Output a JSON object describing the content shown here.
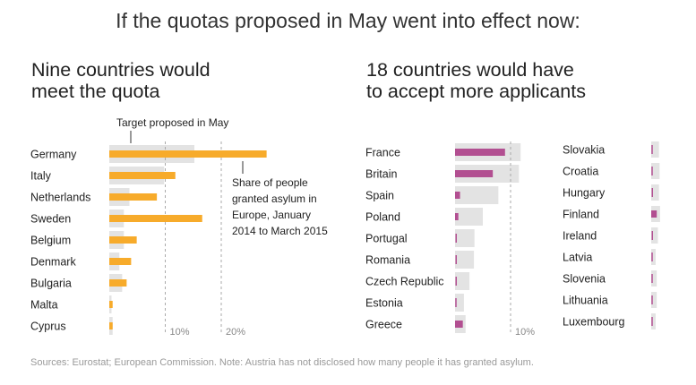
{
  "title": "If the quotas proposed in May went into effect now:",
  "panels": {
    "left": {
      "title_line1": "Nine countries would",
      "title_line2": "meet the quota"
    },
    "right": {
      "title_line1": "18 countries would have",
      "title_line2": "to accept more applicants"
    }
  },
  "annotations": {
    "target": "Target proposed in May",
    "share_lines": [
      "Share of people",
      "granted asylum in",
      "Europe, January",
      "2014 to March 2015"
    ]
  },
  "source": "Sources: Eurostat; European Commission. Note: Austria has not disclosed how many people it has granted asylum.",
  "colors": {
    "meet": "#f7ab2b",
    "below": "#b24f91",
    "target": "#e3e3e3",
    "grid": "#aaaaaa"
  },
  "chart_data": [
    {
      "type": "bar",
      "title": "Nine countries would meet the quota",
      "units": "percent",
      "ticks": [
        "10%",
        "20%"
      ],
      "tick_values": [
        10,
        20
      ],
      "categories": [
        "Germany",
        "Italy",
        "Netherlands",
        "Sweden",
        "Belgium",
        "Denmark",
        "Bulgaria",
        "Malta",
        "Cyprus"
      ],
      "series": [
        {
          "name": "Target proposed in May",
          "values": [
            15.2,
            9.8,
            3.6,
            2.6,
            2.6,
            1.8,
            2.3,
            0.4,
            0.6
          ]
        },
        {
          "name": "Share of people granted asylum in Europe, January 2014 to March 2015",
          "values": [
            28.1,
            11.8,
            8.5,
            16.6,
            4.9,
            3.9,
            3.1,
            0.6,
            0.6
          ]
        }
      ]
    },
    {
      "type": "bar",
      "title": "18 countries would have to accept more applicants",
      "units": "percent",
      "ticks": [
        "10%"
      ],
      "tick_values": [
        10
      ],
      "categories": [
        "France",
        "Britain",
        "Spain",
        "Poland",
        "Portugal",
        "Romania",
        "Czech Republic",
        "Estonia",
        "Greece"
      ],
      "series": [
        {
          "name": "Target proposed in May",
          "values": [
            11.8,
            11.5,
            7.8,
            5.0,
            3.5,
            3.4,
            2.6,
            1.6,
            1.9
          ]
        },
        {
          "name": "Share of people granted asylum in Europe, January 2014 to March 2015",
          "values": [
            9.0,
            6.8,
            0.9,
            0.6,
            0.2,
            0.2,
            0.2,
            0.1,
            1.4
          ]
        }
      ]
    },
    {
      "type": "bar",
      "units": "percent",
      "categories": [
        "Slovakia",
        "Croatia",
        "Hungary",
        "Finland",
        "Ireland",
        "Latvia",
        "Slovenia",
        "Lithuania",
        "Luxembourg"
      ],
      "series": [
        {
          "name": "Target proposed in May",
          "values": [
            1.4,
            1.5,
            1.4,
            1.6,
            1.2,
            0.8,
            1.0,
            1.0,
            0.8
          ]
        },
        {
          "name": "Share of people granted asylum in Europe, January 2014 to March 2015",
          "values": [
            0.1,
            0.1,
            0.2,
            1.0,
            0.2,
            0.1,
            0.1,
            0.1,
            0.1
          ]
        }
      ]
    }
  ]
}
